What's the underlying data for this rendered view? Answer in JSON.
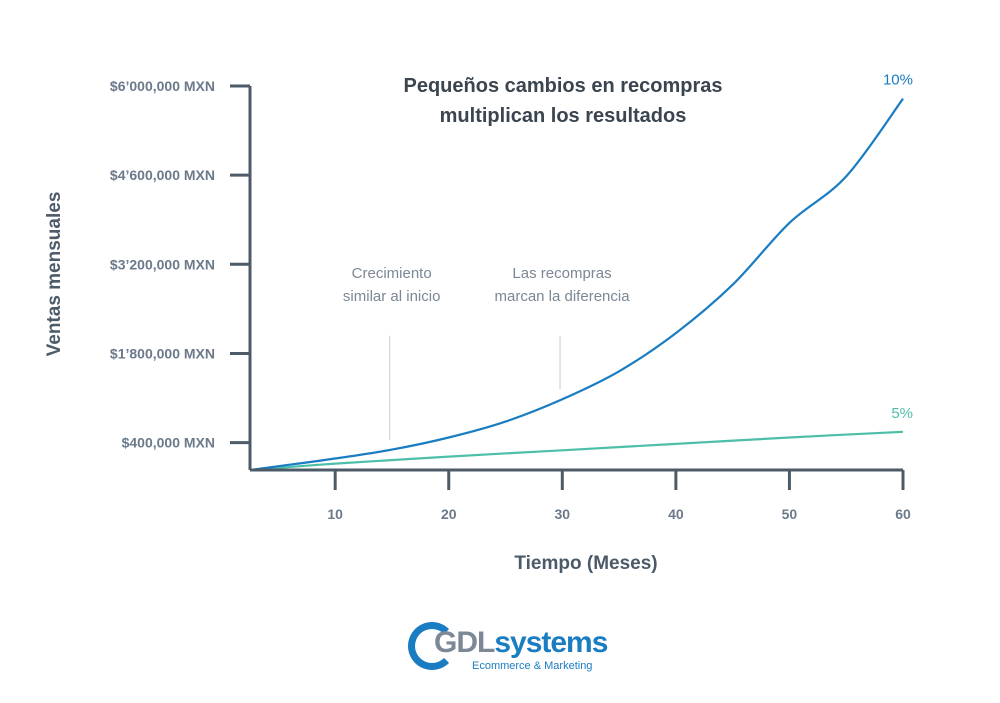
{
  "chart_data": {
    "type": "line",
    "title_line1": "Pequeños cambios en recompras",
    "title_line2": "multiplican los resultados",
    "xlabel": "Tiempo (Meses)",
    "ylabel": "Ventas mensuales",
    "x_ticks": [
      10,
      20,
      30,
      40,
      50,
      60
    ],
    "x_tick_labels": [
      "10",
      "20",
      "30",
      "40",
      "50",
      "60"
    ],
    "y_ticks": [
      400000,
      1800000,
      3200000,
      4600000,
      6000000
    ],
    "y_tick_labels": [
      "$400,000 MXN",
      "$1’800,000 MXN",
      "$3’200,000 MXN",
      "$4’600,000 MXN",
      "$6’000,000 MXN"
    ],
    "xlim": [
      2.5,
      60
    ],
    "ylim": [
      -30000,
      6000000
    ],
    "series": [
      {
        "name": "10%",
        "color": "#1a7cc1",
        "x": [
          2.5,
          5,
          10,
          15,
          20,
          25,
          30,
          35,
          40,
          45,
          50,
          55,
          60
        ],
        "y": [
          -30000,
          30000,
          150000,
          290000,
          480000,
          730000,
          1080000,
          1520000,
          2120000,
          2880000,
          3850000,
          4580000,
          5800000
        ]
      },
      {
        "name": "5%",
        "color": "#4dbfa8",
        "x": [
          2.5,
          10,
          20,
          30,
          40,
          50,
          60
        ],
        "y": [
          -30000,
          70000,
          180000,
          280000,
          380000,
          480000,
          570000
        ]
      }
    ],
    "annotations": [
      {
        "lines": [
          "Crecimiento",
          "similar al inicio"
        ],
        "x": 14.8,
        "line_y": [
          440000,
          2080000
        ]
      },
      {
        "lines": [
          "Las recompras",
          "marcan la diferencia"
        ],
        "x": 29.8,
        "line_y": [
          1240000,
          2080000
        ]
      }
    ],
    "axis_color": "#4d5b68"
  },
  "logo": {
    "brand_gdl": "GDL",
    "brand_systems": "systems",
    "tagline": "Ecommerce & Marketing"
  }
}
